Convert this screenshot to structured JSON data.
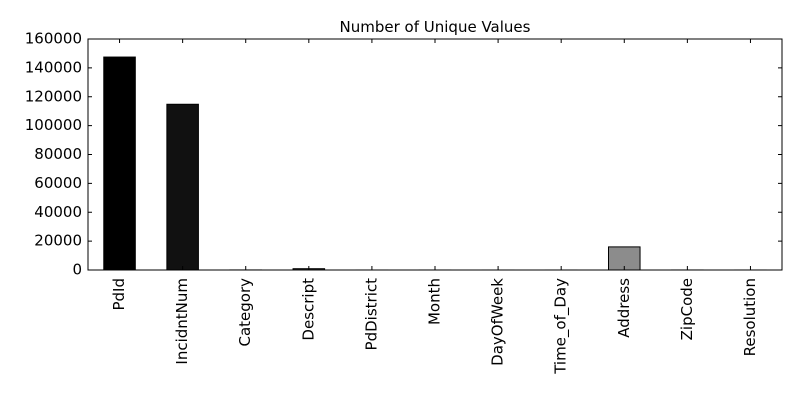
{
  "chart_data": {
    "type": "bar",
    "title": "Number of Unique Values",
    "xlabel": "",
    "ylabel": "",
    "categories": [
      "PdId",
      "IncidntNum",
      "Category",
      "Descript",
      "PdDistrict",
      "Month",
      "DayOfWeek",
      "Time_of_Day",
      "Address",
      "ZipCode",
      "Resolution"
    ],
    "values": [
      147500,
      114800,
      39,
      900,
      10,
      12,
      7,
      4,
      16000,
      27,
      17
    ],
    "bar_colors": [
      "#000000",
      "#111111",
      "#222222",
      "#333333",
      "#444444",
      "#555555",
      "#666666",
      "#777777",
      "#8c8c8c",
      "#999999",
      "#aaaaaa"
    ],
    "ylim": [
      0,
      160000
    ],
    "yticks": [
      "0",
      "20000",
      "40000",
      "60000",
      "80000",
      "100000",
      "120000",
      "140000",
      "160000"
    ],
    "grid": false,
    "legend": "none"
  }
}
